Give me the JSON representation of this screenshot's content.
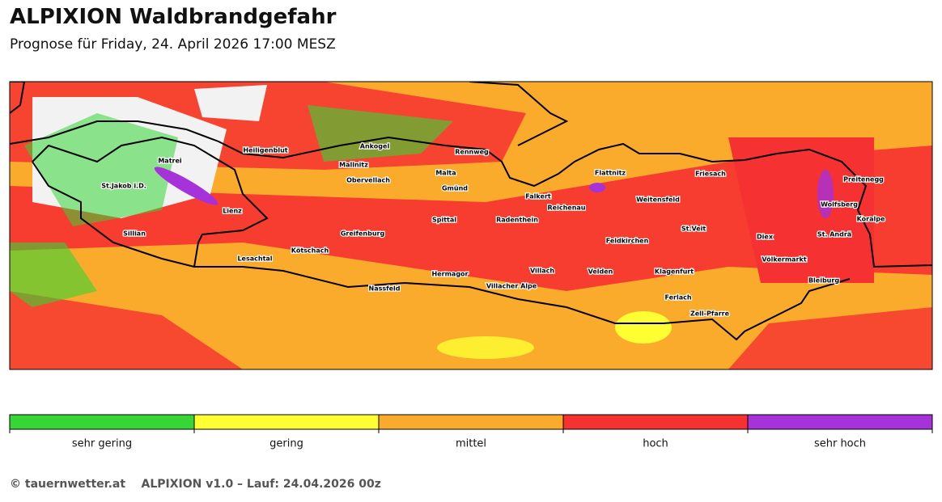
{
  "header": {
    "title": "ALPIXION Waldbrandgefahr",
    "subtitle": "Prognose für Friday, 24. April 2026 17:00 MESZ"
  },
  "map": {
    "places": [
      "Heiligenblut",
      "Ankogel",
      "Rennweg",
      "Matrei",
      "Mallnitz",
      "Malta",
      "Flattnitz",
      "Friesach",
      "Preitenegg",
      "St.Jakob i.D.",
      "Obervellach",
      "Gmünd",
      "Falkert",
      "Weitensfeld",
      "Reichenau",
      "Wolfsberg",
      "Lienz",
      "Spittal",
      "Radenthein",
      "Koralpe",
      "St.Veit",
      "Sillian",
      "Greifenburg",
      "Diex",
      "St. Andrä",
      "Feldkirchen",
      "Kötschach",
      "Lesachtal",
      "Völkermarkt",
      "Villach",
      "Velden",
      "Klagenfurt",
      "Hermagor",
      "Bleiburg",
      "Nassfeld",
      "Villacher Alpe",
      "Ferlach",
      "Zell-Pfarre"
    ]
  },
  "legend": {
    "items": [
      {
        "label": "sehr gering",
        "color": "#35d635"
      },
      {
        "label": "gering",
        "color": "#ffff33"
      },
      {
        "label": "mittel",
        "color": "#fbab2b"
      },
      {
        "label": "hoch",
        "color": "#f53131"
      },
      {
        "label": "sehr hoch",
        "color": "#a632d9"
      }
    ]
  },
  "footer": {
    "copyright": "© tauernwetter.at",
    "run": "ALPIXION v1.0 – Lauf: 24.04.2026 00z"
  }
}
